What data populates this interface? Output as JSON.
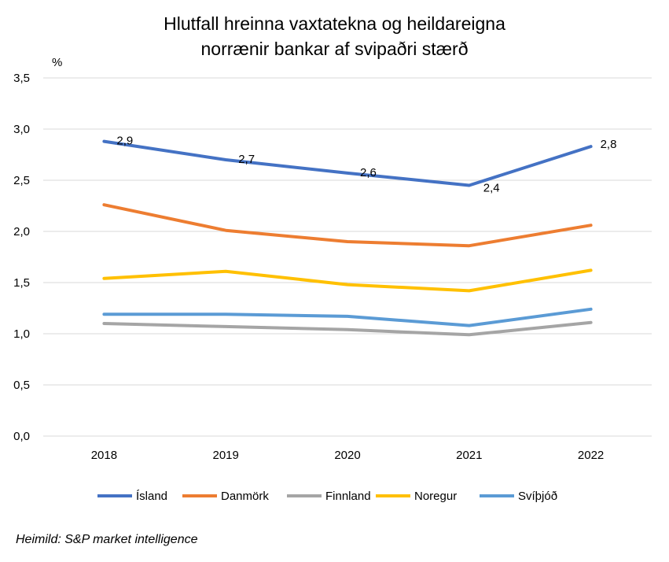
{
  "chart_data": {
    "type": "line",
    "title_lines": [
      "Hlutfall hreinna vaxtatekna og heildareigna",
      "norrænir bankar af svipaðri stærð"
    ],
    "ylabel": "%",
    "xlabel": "",
    "categories": [
      "2018",
      "2019",
      "2020",
      "2021",
      "2022"
    ],
    "ylim": [
      0,
      3.5
    ],
    "yticks": [
      0,
      0.5,
      1.0,
      1.5,
      2.0,
      2.5,
      3.0,
      3.5
    ],
    "ytick_labels": [
      "0,0",
      "0,5",
      "1,0",
      "1,5",
      "2,0",
      "2,5",
      "3,0",
      "3,5"
    ],
    "grid": true,
    "legend_position": "bottom",
    "series": [
      {
        "name": "Ísland",
        "color": "#4472C4",
        "values": [
          2.88,
          2.7,
          2.57,
          2.45,
          2.83
        ],
        "data_labels": [
          "2,9",
          "2,7",
          "2,6",
          "2,4",
          "2,8"
        ]
      },
      {
        "name": "Danmörk",
        "color": "#ED7D31",
        "values": [
          2.26,
          2.01,
          1.9,
          1.86,
          2.06
        ]
      },
      {
        "name": "Finnland",
        "color": "#A5A5A5",
        "values": [
          1.1,
          1.07,
          1.04,
          0.99,
          1.11
        ]
      },
      {
        "name": "Noregur",
        "color": "#FFC000",
        "values": [
          1.54,
          1.61,
          1.48,
          1.42,
          1.62
        ]
      },
      {
        "name": "Svíþjóð",
        "color": "#5B9BD5",
        "values": [
          1.19,
          1.19,
          1.17,
          1.08,
          1.24
        ]
      }
    ]
  },
  "source": "Heimild: S&P market intelligence"
}
